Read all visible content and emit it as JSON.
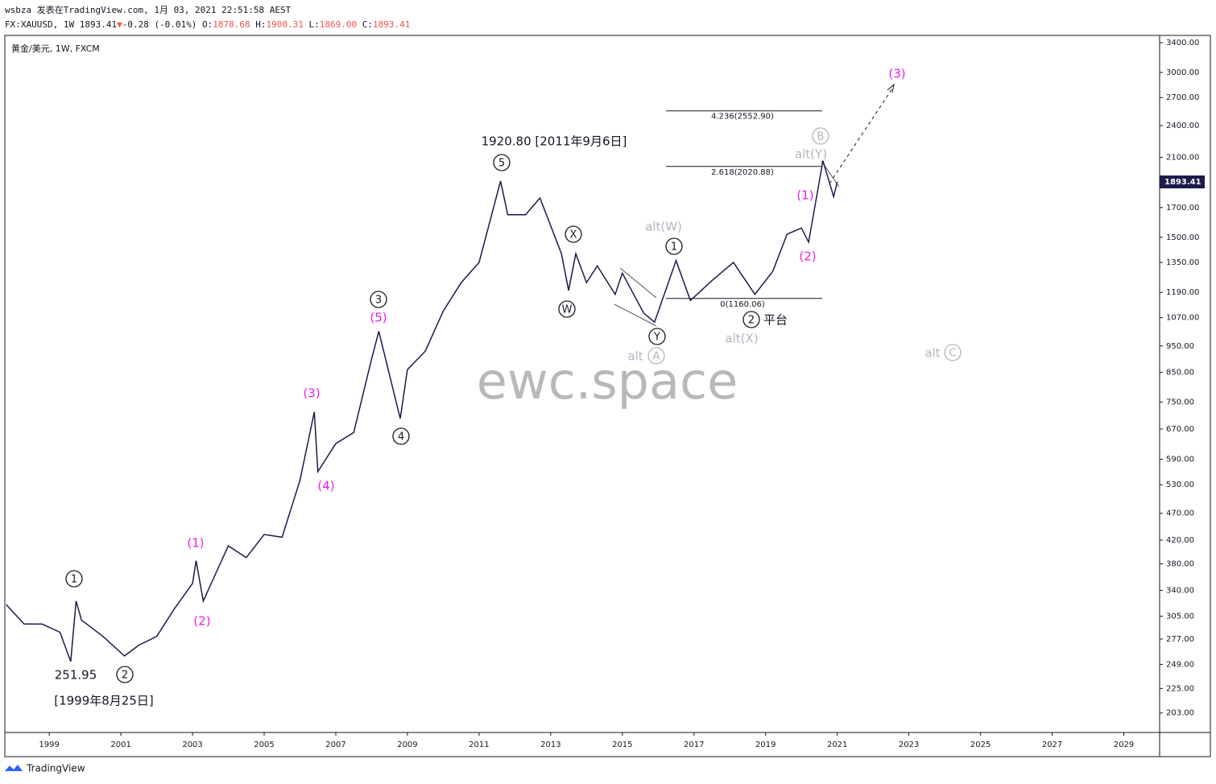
{
  "header": {
    "publisher": "wsbza 发表在TradingView.com, 1月 03, 2021 22:51:58 AEST",
    "symbol": "FX:XAUUSD, 1W 1893.41",
    "change_arrow": "▼",
    "change": "-0.28 (-0.01%)",
    "open_label": "O:",
    "open": "1878.68",
    "high_label": "H:",
    "high": "1900.31",
    "low_label": "L:",
    "low": "1869.00",
    "close_label": "C:",
    "close": "1893.41"
  },
  "chart_data": {
    "type": "line",
    "legend": "黄金/美元, 1W, FXCM",
    "color": "#1c1a4a",
    "log_scale": true,
    "x": [
      1997.8,
      1998.3,
      1998.8,
      1999.3,
      1999.6,
      1999.75,
      1999.9,
      2000.5,
      2001.1,
      2001.5,
      2002.0,
      2002.5,
      2003.0,
      2003.1,
      2003.3,
      2004.0,
      2004.5,
      2005.0,
      2005.5,
      2006.0,
      2006.4,
      2006.5,
      2007.0,
      2007.5,
      2008.0,
      2008.2,
      2008.8,
      2009.0,
      2009.5,
      2010.0,
      2010.5,
      2011.0,
      2011.6,
      2011.8,
      2012.3,
      2012.7,
      2013.3,
      2013.5,
      2013.7,
      2014.0,
      2014.3,
      2014.8,
      2015.0,
      2015.6,
      2015.9,
      2016.5,
      2016.9,
      2017.5,
      2018.1,
      2018.7,
      2019.2,
      2019.6,
      2020.0,
      2020.2,
      2020.6,
      2020.9,
      2021.0
    ],
    "values": [
      320,
      295,
      295,
      285,
      252,
      325,
      300,
      280,
      258,
      270,
      280,
      315,
      350,
      385,
      325,
      410,
      390,
      430,
      425,
      540,
      720,
      560,
      630,
      660,
      900,
      1010,
      700,
      860,
      930,
      1100,
      1240,
      1350,
      1900,
      1650,
      1650,
      1770,
      1400,
      1200,
      1400,
      1240,
      1330,
      1180,
      1290,
      1090,
      1050,
      1360,
      1150,
      1250,
      1350,
      1180,
      1300,
      1520,
      1560,
      1470,
      2070,
      1780,
      1893.41
    ],
    "xlim": [
      1997.76,
      2030
    ],
    "xticks": [
      1999,
      2001,
      2003,
      2005,
      2007,
      2009,
      2011,
      2013,
      2015,
      2017,
      2019,
      2021,
      2023,
      2025,
      2027,
      2029
    ],
    "ylim": [
      187,
      3506
    ],
    "yticks": [
      {
        "value": 203,
        "label": "203.00"
      },
      {
        "value": 225,
        "label": "225.00"
      },
      {
        "value": 249,
        "label": "249.00"
      },
      {
        "value": 277,
        "label": "277.00"
      },
      {
        "value": 305,
        "label": "305.00"
      },
      {
        "value": 340,
        "label": "340.00"
      },
      {
        "value": 380,
        "label": "380.00"
      },
      {
        "value": 420,
        "label": "420.00"
      },
      {
        "value": 470,
        "label": "470.00"
      },
      {
        "value": 530,
        "label": "530.00"
      },
      {
        "value": 590,
        "label": "590.00"
      },
      {
        "value": 670,
        "label": "670.00"
      },
      {
        "value": 750,
        "label": "750.00"
      },
      {
        "value": 850,
        "label": "850.00"
      },
      {
        "value": 950,
        "label": "950.00"
      },
      {
        "value": 1070,
        "label": "1070.00"
      },
      {
        "value": 1190,
        "label": "1190.00"
      },
      {
        "value": 1350,
        "label": "1350.00"
      },
      {
        "value": 1500,
        "label": "1500.00"
      },
      {
        "value": 1700,
        "label": "1700.00"
      },
      {
        "value": 2100,
        "label": "2100.00"
      },
      {
        "value": 2400,
        "label": "2400.00"
      },
      {
        "value": 2700,
        "label": "2700.00"
      },
      {
        "value": 3000,
        "label": "3000.00"
      },
      {
        "value": 3400,
        "label": "3400.00"
      }
    ],
    "fib_levels": [
      {
        "value": 2552.9,
        "label": "4.236(2552.90)"
      },
      {
        "value": 2020.88,
        "label": "2.618(2020.88)"
      },
      {
        "value": 1160.06,
        "label": "0(1160.06)"
      }
    ],
    "annotations": [
      {
        "text": "1920.80 [2011年9月6日]",
        "color": "#131722"
      },
      {
        "text": "5",
        "color": "#131722",
        "circled": true
      },
      {
        "text": "1",
        "color": "#131722",
        "circled": true
      },
      {
        "text": "251.95",
        "color": "#131722"
      },
      {
        "text": "2",
        "color": "#131722",
        "circled": true
      },
      {
        "text": "[1999年8月25日]",
        "color": "#131722"
      },
      {
        "text": "(1)",
        "color": "#e91ee8"
      },
      {
        "text": "(2)",
        "color": "#e91ee8"
      },
      {
        "text": "(3)",
        "color": "#e91ee8"
      },
      {
        "text": "(4)",
        "color": "#e91ee8"
      },
      {
        "text": "3",
        "color": "#131722",
        "circled": true
      },
      {
        "text": "(5)",
        "color": "#e91ee8"
      },
      {
        "text": "4",
        "color": "#131722",
        "circled": true
      },
      {
        "text": "X",
        "color": "#131722",
        "circled": true
      },
      {
        "text": "W",
        "color": "#131722",
        "circled": true
      },
      {
        "text": "Y",
        "color": "#131722",
        "circled": true
      },
      {
        "text": "alt",
        "color": "#b2b5be"
      },
      {
        "text": "A",
        "color": "#b2b5be",
        "circled": true
      },
      {
        "text": "alt(W)",
        "color": "#b2b5be"
      },
      {
        "text": "1",
        "color": "#131722",
        "circled": true
      },
      {
        "text": "2",
        "color": "#131722",
        "circled": true
      },
      {
        "text": "平台",
        "color": "#131722"
      },
      {
        "text": "alt(X)",
        "color": "#b2b5be"
      },
      {
        "text": "(1)",
        "color": "#e91ee8"
      },
      {
        "text": "(2)",
        "color": "#e91ee8"
      },
      {
        "text": "alt(Y)",
        "color": "#b2b5be"
      },
      {
        "text": "B",
        "color": "#b2b5be",
        "circled": true
      },
      {
        "text": "(3)",
        "color": "#e91ee8"
      },
      {
        "text": "alt",
        "color": "#b2b5be"
      },
      {
        "text": "C",
        "color": "#b2b5be",
        "circled": true
      }
    ],
    "watermark": "ewc.space"
  },
  "footer": "TradingView"
}
